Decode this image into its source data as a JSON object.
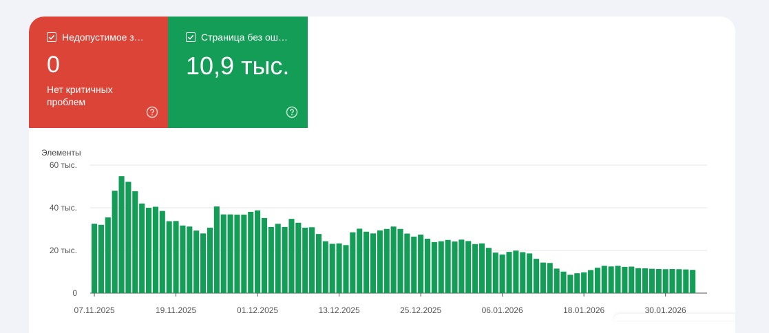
{
  "tiles": [
    {
      "title": "Недопустимое з…",
      "value": "0",
      "subtitle": "Нет критичных проблем",
      "checked": true,
      "color": "#db4437"
    },
    {
      "title": "Страница без ош…",
      "value": "10,9 тыс.",
      "subtitle": "",
      "checked": true,
      "color": "#149d57"
    }
  ],
  "chart_data": {
    "type": "bar",
    "ylabel": "Элементы",
    "ylim": [
      0,
      60000
    ],
    "y_ticks": [
      "60 тыс.",
      "40 тыс.",
      "20 тыс.",
      "0"
    ],
    "x_ticks": [
      "07.11.2025",
      "19.11.2025",
      "01.12.2025",
      "13.12.2025",
      "25.12.2025",
      "06.01.2026",
      "18.01.2026",
      "30.01.2026"
    ],
    "bar_color": "#149d57",
    "values": [
      32500,
      32000,
      35500,
      48000,
      54800,
      52200,
      47800,
      42000,
      40000,
      40500,
      38500,
      33700,
      33800,
      31700,
      31200,
      29300,
      28000,
      30700,
      40600,
      36900,
      36900,
      36800,
      36800,
      38100,
      38800,
      35200,
      31000,
      32500,
      31000,
      34800,
      33000,
      30700,
      30900,
      27700,
      24300,
      23100,
      23300,
      22500,
      28500,
      30200,
      28800,
      28000,
      29400,
      30100,
      31200,
      30100,
      27900,
      26500,
      27400,
      25500,
      23900,
      24300,
      24900,
      24200,
      25100,
      24400,
      23000,
      23300,
      21200,
      19000,
      18100,
      19300,
      19900,
      19200,
      18600,
      16100,
      14300,
      14100,
      11500,
      10100,
      8600,
      9300,
      9700,
      10800,
      11900,
      12800,
      12500,
      12800,
      12300,
      12400,
      11700,
      11600,
      11400,
      11300,
      11200,
      11300,
      11200,
      11100,
      10900
    ]
  }
}
